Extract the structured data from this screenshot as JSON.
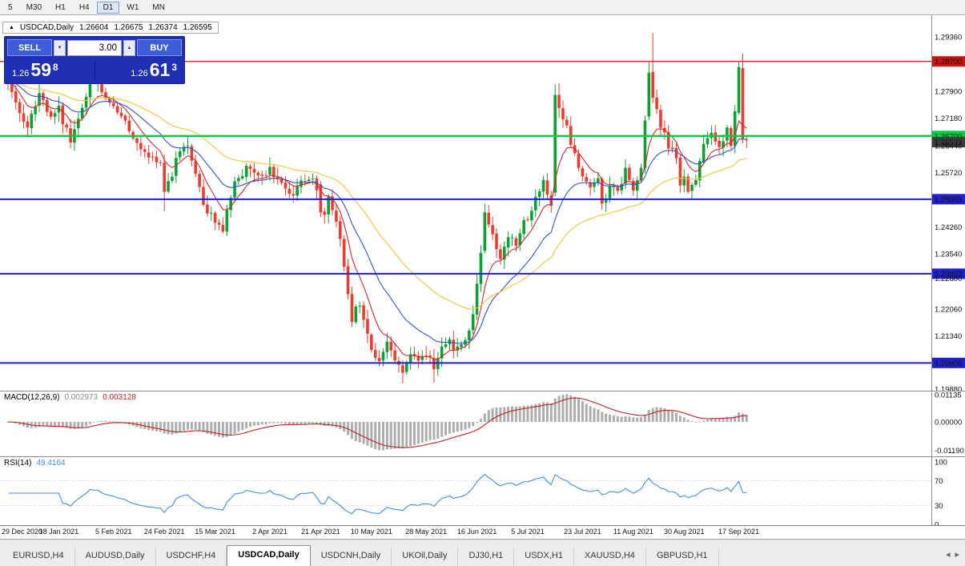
{
  "toolbar": {
    "timeframes": [
      {
        "label": "5",
        "active": false
      },
      {
        "label": "M30",
        "active": false
      },
      {
        "label": "H1",
        "active": false
      },
      {
        "label": "H4",
        "active": false
      },
      {
        "label": "D1",
        "active": true
      },
      {
        "label": "W1",
        "active": false
      },
      {
        "label": "MN",
        "active": false
      }
    ]
  },
  "chart_header": {
    "trend_icon": "▲",
    "symbol": "USDCAD,Daily",
    "open": "1.26604",
    "high": "1.26675",
    "low": "1.26374",
    "close": "1.26595"
  },
  "trade_panel": {
    "sell_label": "SELL",
    "buy_label": "BUY",
    "volume": "3.00",
    "sell_price": {
      "prefix": "1.26",
      "big": "59",
      "sup": "8"
    },
    "buy_price": {
      "prefix": "1.26",
      "big": "61",
      "sup": "3"
    }
  },
  "icons": {
    "volume_down": "▼",
    "volume_up": "▲",
    "tabs_scroll_left": "◂",
    "tabs_scroll_right": "▸"
  },
  "chart_data": {
    "type": "candlestick",
    "symbol": "USDCAD",
    "timeframe": "Daily",
    "bars": 190,
    "ylim": [
      1.1988,
      1.2994
    ],
    "current_bar": {
      "open": 1.26604,
      "high": 1.26675,
      "low": 1.26374,
      "close": 1.26595
    },
    "axis_ticks": [
      {
        "label": "1.29360",
        "price": 1.2936,
        "badge": null
      },
      {
        "label": "1.28700",
        "price": 1.287,
        "badge": "red"
      },
      {
        "label": "1.27900",
        "price": 1.279,
        "badge": null
      },
      {
        "label": "1.27180",
        "price": 1.2718,
        "badge": null
      },
      {
        "label": "1.26700",
        "price": 1.267,
        "badge": "green"
      },
      {
        "label": "1.26533",
        "price": 1.26533,
        "badge": "dark"
      },
      {
        "label": "1.26440",
        "price": 1.2644,
        "badge": null
      },
      {
        "label": "1.25720",
        "price": 1.2572,
        "badge": null
      },
      {
        "label": "1.25003",
        "price": 1.25003,
        "badge": "blue"
      },
      {
        "label": "1.24260",
        "price": 1.2426,
        "badge": null
      },
      {
        "label": "1.23540",
        "price": 1.2354,
        "badge": null
      },
      {
        "label": "1.23003",
        "price": 1.23003,
        "badge": "blue"
      },
      {
        "label": "1.22880",
        "price": 1.2288,
        "badge": null
      },
      {
        "label": "1.22060",
        "price": 1.2206,
        "badge": null
      },
      {
        "label": "1.21340",
        "price": 1.2134,
        "badge": null
      },
      {
        "label": "1.20609",
        "price": 1.20609,
        "badge": "blue"
      },
      {
        "label": "1.19880",
        "price": 1.1988,
        "badge": null
      }
    ],
    "hlines": [
      {
        "price": 1.287,
        "color_key": "line_red",
        "width": 1.2
      },
      {
        "price": 1.267,
        "color_key": "line_green",
        "width": 2.4
      },
      {
        "price": 1.25003,
        "color_key": "line_blue",
        "width": 2
      },
      {
        "price": 1.23003,
        "color_key": "line_blue",
        "width": 2
      },
      {
        "price": 1.20609,
        "color_key": "line_blue",
        "width": 2
      }
    ],
    "moving_averages": [
      {
        "period": 8,
        "color_key": "ma_fast"
      },
      {
        "period": 20,
        "color_key": "ma_mid"
      },
      {
        "period": 45,
        "color_key": "ma_slow"
      }
    ],
    "anchors": [
      [
        0,
        1.2815
      ],
      [
        2,
        1.277
      ],
      [
        5,
        1.269
      ],
      [
        8,
        1.2775
      ],
      [
        11,
        1.272
      ],
      [
        13,
        1.274
      ],
      [
        16,
        1.2655
      ],
      [
        19,
        1.2745
      ],
      [
        21,
        1.2825
      ],
      [
        24,
        1.2795
      ],
      [
        27,
        1.2755
      ],
      [
        30,
        1.27
      ],
      [
        33,
        1.265
      ],
      [
        36,
        1.262
      ],
      [
        39,
        1.26
      ],
      [
        40,
        1.252
      ],
      [
        42,
        1.257
      ],
      [
        44,
        1.2635
      ],
      [
        46,
        1.2655
      ],
      [
        48,
        1.2575
      ],
      [
        50,
        1.2485
      ],
      [
        53,
        1.244
      ],
      [
        55,
        1.2425
      ],
      [
        57,
        1.251
      ],
      [
        59,
        1.2565
      ],
      [
        62,
        1.259
      ],
      [
        65,
        1.2565
      ],
      [
        67,
        1.258
      ],
      [
        70,
        1.2535
      ],
      [
        73,
        1.2505
      ],
      [
        76,
        1.256
      ],
      [
        78,
        1.255
      ],
      [
        80,
        1.2505
      ],
      [
        81,
        1.2465
      ],
      [
        82,
        1.25
      ],
      [
        84,
        1.2445
      ],
      [
        85,
        1.239
      ],
      [
        86,
        1.231
      ],
      [
        88,
        1.218
      ],
      [
        90,
        1.2225
      ],
      [
        92,
        1.2135
      ],
      [
        93,
        1.2105
      ],
      [
        95,
        1.2065
      ],
      [
        97,
        1.2115
      ],
      [
        99,
        1.2075
      ],
      [
        101,
        1.204
      ],
      [
        103,
        1.2095
      ],
      [
        105,
        1.206
      ],
      [
        107,
        1.208
      ],
      [
        109,
        1.205
      ],
      [
        111,
        1.2095
      ],
      [
        113,
        1.2115
      ],
      [
        115,
        1.2098
      ],
      [
        117,
        1.2125
      ],
      [
        119,
        1.218
      ],
      [
        120,
        1.228
      ],
      [
        121,
        1.236
      ],
      [
        122,
        1.2465
      ],
      [
        124,
        1.2395
      ],
      [
        126,
        1.233
      ],
      [
        128,
        1.2405
      ],
      [
        130,
        1.2385
      ],
      [
        132,
        1.244
      ],
      [
        133,
        1.2455
      ],
      [
        135,
        1.2505
      ],
      [
        137,
        1.2545
      ],
      [
        139,
        1.248
      ],
      [
        140,
        1.278
      ],
      [
        141,
        1.2745
      ],
      [
        143,
        1.269
      ],
      [
        145,
        1.262
      ],
      [
        147,
        1.2565
      ],
      [
        149,
        1.2525
      ],
      [
        151,
        1.2555
      ],
      [
        152,
        1.248
      ],
      [
        154,
        1.2545
      ],
      [
        156,
        1.253
      ],
      [
        158,
        1.2575
      ],
      [
        160,
        1.252
      ],
      [
        162,
        1.2585
      ],
      [
        163,
        1.272
      ],
      [
        164,
        1.284
      ],
      [
        165,
        1.277
      ],
      [
        167,
        1.27
      ],
      [
        169,
        1.2645
      ],
      [
        171,
        1.2615
      ],
      [
        172,
        1.2535
      ],
      [
        173,
        1.255
      ],
      [
        174,
        1.252
      ],
      [
        176,
        1.255
      ],
      [
        178,
        1.264
      ],
      [
        180,
        1.269
      ],
      [
        182,
        1.2635
      ],
      [
        184,
        1.2685
      ],
      [
        185,
        1.2635
      ],
      [
        186,
        1.273
      ],
      [
        187,
        1.2855
      ],
      [
        188,
        1.2662
      ],
      [
        189,
        1.26595
      ]
    ],
    "overrides": {
      "21": [
        null,
        1.2878,
        null,
        null
      ],
      "40": [
        1.2598,
        null,
        1.2468,
        1.252
      ],
      "55": [
        null,
        null,
        1.2408,
        null
      ],
      "80": [
        1.254,
        null,
        1.2452,
        1.2465
      ],
      "101": [
        null,
        null,
        1.2006,
        null
      ],
      "109": [
        null,
        null,
        1.2008,
        null
      ],
      "122": [
        1.2362,
        1.2488,
        1.2355,
        1.2465
      ],
      "140": [
        1.2518,
        1.2808,
        1.2508,
        1.278
      ],
      "141": [
        1.278,
        1.2812,
        1.2718,
        1.2745
      ],
      "164": [
        1.2722,
        1.2868,
        1.2712,
        1.284
      ],
      "165": [
        1.2842,
        1.2946,
        1.2758,
        1.2772
      ],
      "187": [
        1.2732,
        1.2868,
        1.2726,
        1.2855
      ],
      "188": [
        1.2852,
        1.2892,
        1.265,
        1.2662
      ],
      "189": [
        1.26604,
        1.26675,
        1.26374,
        1.26595
      ]
    }
  },
  "macd": {
    "title": "MACD(12,26,9)",
    "value_main": "0.002973",
    "value_signal": "0.003128",
    "params": [
      12,
      26,
      9
    ],
    "ticks": [
      {
        "label": "0.01135",
        "value": 0.01135
      },
      {
        "label": "0.00000",
        "value": 0
      },
      {
        "label": "-0.01190",
        "value": -0.0119
      }
    ]
  },
  "rsi": {
    "title": "RSI(14)",
    "value": "49.4164",
    "period": 14,
    "levels": [
      70,
      30
    ],
    "ticks": [
      {
        "label": "100",
        "value": 100
      },
      {
        "label": "70",
        "value": 70
      },
      {
        "label": "30",
        "value": 30
      },
      {
        "label": "0",
        "value": 0
      }
    ]
  },
  "x_axis": {
    "labels": [
      {
        "text": "29 Dec 2020",
        "bar": 0
      },
      {
        "text": "18 Jan 2021",
        "bar": 13
      },
      {
        "text": "5 Feb 2021",
        "bar": 27
      },
      {
        "text": "24 Feb 2021",
        "bar": 40
      },
      {
        "text": "15 Mar 2021",
        "bar": 53
      },
      {
        "text": "2 Apr 2021",
        "bar": 67
      },
      {
        "text": "21 Apr 2021",
        "bar": 80
      },
      {
        "text": "10 May 2021",
        "bar": 93
      },
      {
        "text": "28 May 2021",
        "bar": 107
      },
      {
        "text": "16 Jun 2021",
        "bar": 120
      },
      {
        "text": "5 Jul 2021",
        "bar": 133
      },
      {
        "text": "23 Jul 2021",
        "bar": 147
      },
      {
        "text": "11 Aug 2021",
        "bar": 160
      },
      {
        "text": "30 Aug 2021",
        "bar": 173
      },
      {
        "text": "17 Sep 2021",
        "bar": 187
      }
    ]
  },
  "tabs": {
    "items": [
      "EURUSD,H4",
      "AUDUSD,Daily",
      "USDCHF,H4",
      "USDCAD,Daily",
      "USDCNH,Daily",
      "UKOil,Daily",
      "DJ30,H1",
      "USDX,H1",
      "XAUUSD,H4",
      "GBPUSD,H1"
    ],
    "active": "USDCAD,Daily"
  },
  "colors": {
    "up": "#0ba133",
    "down": "#ef3a2e",
    "ma_fast": "#d02828",
    "ma_mid": "#3552c8",
    "ma_slow": "#f2c330",
    "line_red": "#c41414",
    "line_green": "#00cc44",
    "line_blue": "#2121cc",
    "badge_dark": "#3c3c3c",
    "macd_hist": "#adadad",
    "macd_signal": "#c82020",
    "rsi_line": "#3e8ede"
  }
}
